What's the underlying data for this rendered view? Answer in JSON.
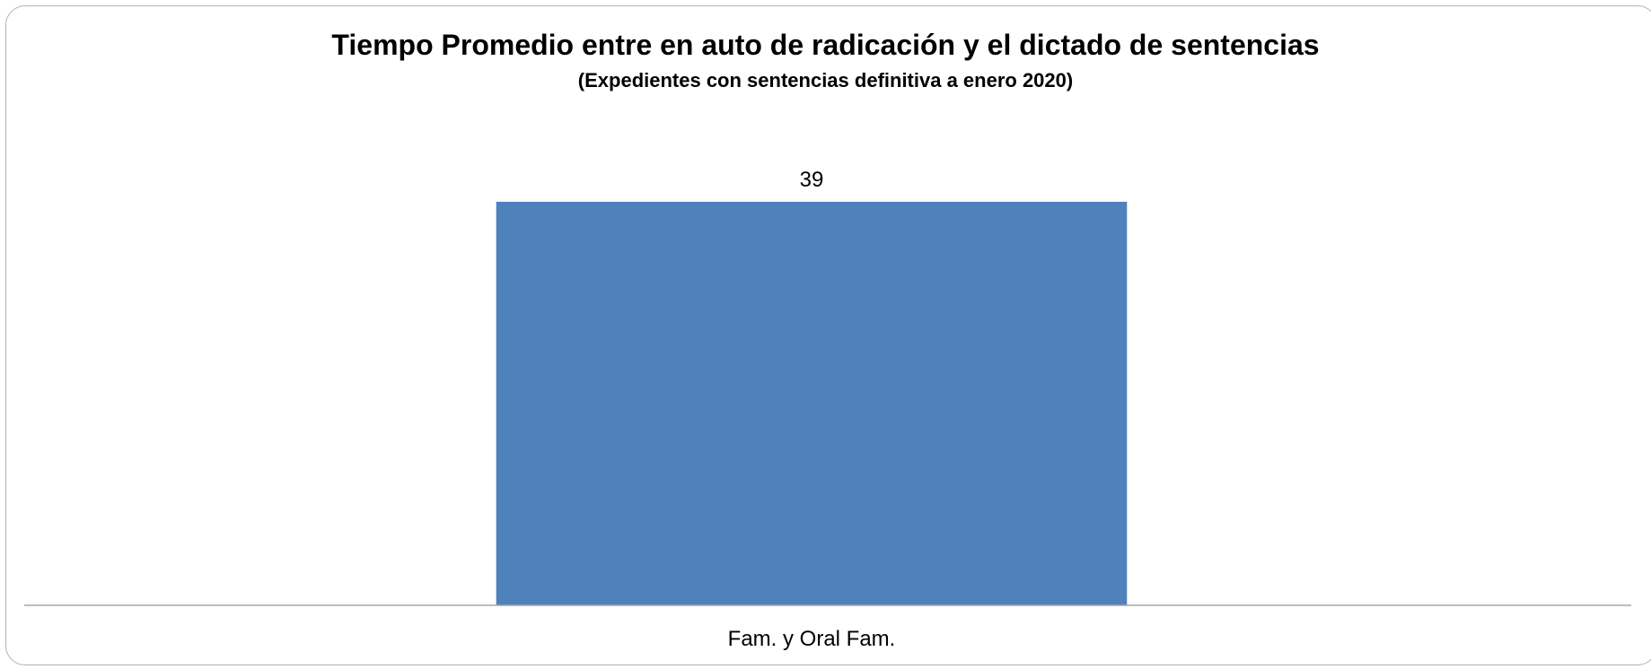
{
  "chart_data": {
    "type": "bar",
    "title": "Tiempo Promedio entre en auto de radicación y el dictado de sentencias",
    "subtitle": "(Expedientes con sentencias definitiva a enero 2020)",
    "categories": [
      "Fam. y Oral Fam."
    ],
    "values": [
      39
    ],
    "data_labels": [
      "39"
    ],
    "xlabel": "",
    "ylabel": "",
    "ylim": [
      0,
      39
    ],
    "grid": false,
    "legend": "none",
    "bar_color": "#4f81bd",
    "axis_color": "#a6a6a6"
  }
}
